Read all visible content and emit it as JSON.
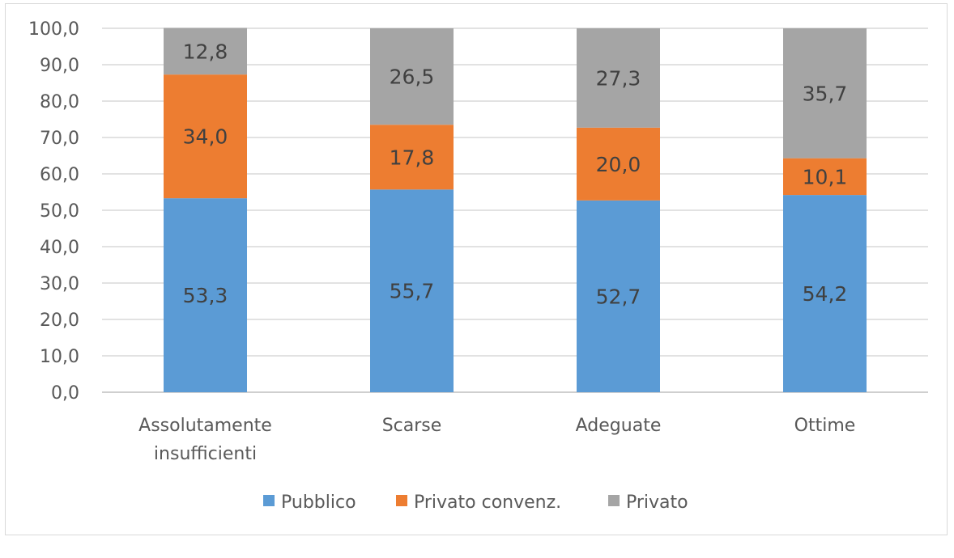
{
  "chart_data": {
    "type": "bar",
    "stacked": true,
    "categories": [
      "Assolutamente insufficienti",
      "Scarse",
      "Adeguate",
      "Ottime"
    ],
    "category_lines": [
      [
        "Assolutamente",
        "insufficienti"
      ],
      [
        "Scarse"
      ],
      [
        "Adeguate"
      ],
      [
        "Ottime"
      ]
    ],
    "series": [
      {
        "name": "Pubblico",
        "values": [
          53.3,
          55.7,
          52.7,
          54.2
        ],
        "labels": [
          "53,3",
          "55,7",
          "52,7",
          "54,2"
        ],
        "color": "#5b9bd5"
      },
      {
        "name": "Privato convenz.",
        "values": [
          34.0,
          17.8,
          20.0,
          10.1
        ],
        "labels": [
          "34,0",
          "17,8",
          "20,0",
          "10,1"
        ],
        "color": "#ed7d31"
      },
      {
        "name": "Privato",
        "values": [
          12.8,
          26.5,
          27.3,
          35.7
        ],
        "labels": [
          "12,8",
          "26,5",
          "27,3",
          "35,7"
        ],
        "color": "#a5a5a5"
      }
    ],
    "yticks": [
      "0,0",
      "10,0",
      "20,0",
      "30,0",
      "40,0",
      "50,0",
      "60,0",
      "70,0",
      "80,0",
      "90,0",
      "100,0"
    ],
    "ylim": [
      0,
      100
    ],
    "grid": true,
    "legend": "bottom",
    "title": "",
    "xlabel": "",
    "ylabel": ""
  }
}
